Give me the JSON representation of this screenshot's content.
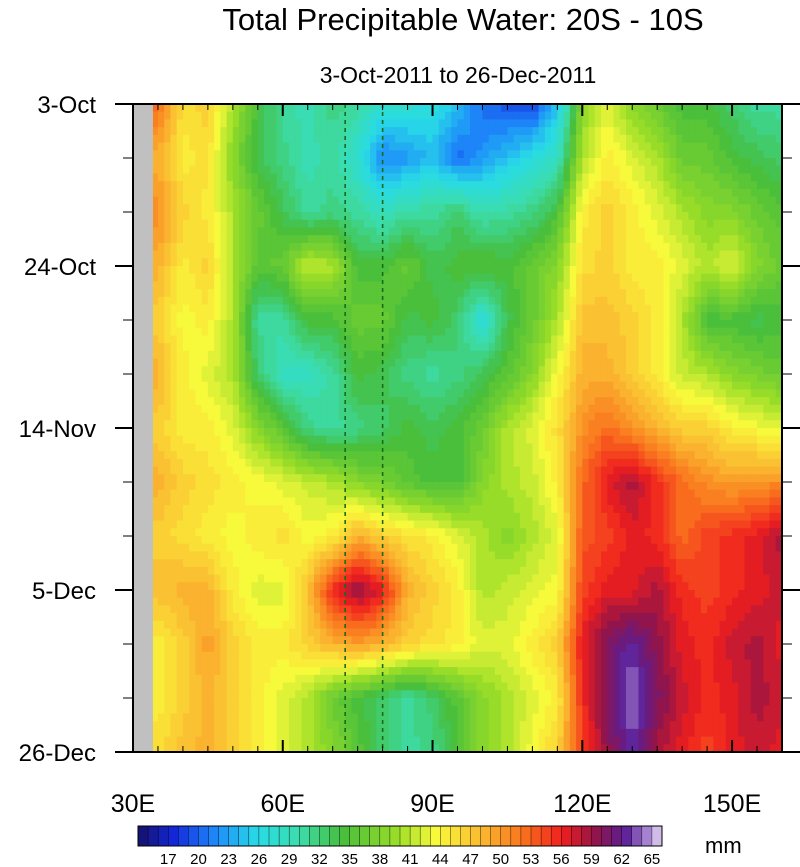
{
  "chart_data": {
    "type": "heatmap",
    "title": "Total Precipitable Water: 20S - 10S",
    "subtitle": "3-Oct-2011 to 26-Dec-2011",
    "x_ticks": [
      {
        "value": 30,
        "label": "30E"
      },
      {
        "value": 60,
        "label": "60E"
      },
      {
        "value": 90,
        "label": "90E"
      },
      {
        "value": 120,
        "label": "120E"
      },
      {
        "value": 150,
        "label": "150E"
      }
    ],
    "xlim": [
      30,
      160
    ],
    "y_ticks": [
      {
        "day": 0,
        "label": "3-Oct"
      },
      {
        "day": 21,
        "label": "24-Oct"
      },
      {
        "day": 42,
        "label": "14-Nov"
      },
      {
        "day": 63,
        "label": "5-Dec"
      },
      {
        "day": 84,
        "label": "26-Dec"
      }
    ],
    "ylim_days": [
      0,
      84
    ],
    "colorbar": {
      "unit": "mm",
      "tick_values": [
        17,
        20,
        23,
        26,
        29,
        32,
        35,
        38,
        41,
        44,
        47,
        50,
        53,
        56,
        59,
        62,
        65
      ],
      "levels_min": 14,
      "levels_max": 66,
      "levels_step": 1
    },
    "reference_lines_x": [
      72.5,
      80
    ],
    "land_mask": {
      "x_from": 30,
      "x_to": 34
    },
    "field_grid": {
      "x_cols": [
        35,
        40,
        45,
        50,
        55,
        60,
        65,
        70,
        75,
        80,
        85,
        90,
        95,
        100,
        105,
        110,
        115,
        120,
        125,
        130,
        135,
        140,
        145,
        150,
        155,
        160
      ],
      "day_rows": [
        0,
        7,
        14,
        21,
        28,
        35,
        42,
        49,
        56,
        63,
        70,
        77,
        84
      ],
      "values": [
        [
          52,
          45,
          46,
          40,
          34,
          30,
          29,
          31,
          30,
          27,
          27,
          26,
          24,
          20,
          19,
          18,
          24,
          38,
          42,
          38,
          36,
          34,
          34,
          32,
          30,
          30
        ],
        [
          48,
          44,
          45,
          38,
          33,
          31,
          29,
          30,
          27,
          21,
          22,
          24,
          20,
          22,
          24,
          26,
          28,
          40,
          44,
          42,
          40,
          36,
          36,
          34,
          33,
          32
        ],
        [
          50,
          46,
          44,
          40,
          36,
          33,
          30,
          31,
          30,
          28,
          30,
          30,
          32,
          29,
          30,
          31,
          34,
          44,
          46,
          44,
          42,
          40,
          38,
          38,
          36,
          35
        ],
        [
          48,
          44,
          46,
          40,
          35,
          36,
          41,
          40,
          34,
          34,
          36,
          33,
          34,
          35,
          34,
          36,
          38,
          45,
          46,
          44,
          44,
          42,
          40,
          42,
          38,
          36
        ],
        [
          46,
          43,
          44,
          40,
          30,
          30,
          34,
          34,
          36,
          36,
          33,
          34,
          32,
          26,
          33,
          36,
          40,
          47,
          47,
          46,
          44,
          40,
          34,
          34,
          33,
          34
        ],
        [
          48,
          44,
          42,
          40,
          32,
          28,
          28,
          30,
          34,
          33,
          31,
          30,
          31,
          33,
          35,
          38,
          43,
          48,
          48,
          46,
          44,
          41,
          40,
          38,
          37,
          36
        ],
        [
          46,
          44,
          44,
          42,
          38,
          35,
          31,
          30,
          31,
          32,
          34,
          33,
          34,
          36,
          40,
          42,
          45,
          50,
          52,
          50,
          48,
          46,
          46,
          44,
          43,
          42
        ],
        [
          48,
          46,
          45,
          44,
          43,
          42,
          41,
          40,
          38,
          37,
          35,
          34,
          34,
          38,
          40,
          41,
          44,
          52,
          56,
          58,
          55,
          52,
          50,
          49,
          50,
          50
        ],
        [
          46,
          45,
          44,
          43,
          44,
          45,
          43,
          44,
          48,
          46,
          45,
          44,
          42,
          40,
          38,
          40,
          42,
          53,
          54,
          56,
          55,
          52,
          54,
          55,
          56,
          58
        ],
        [
          47,
          48,
          48,
          44,
          42,
          42,
          47,
          55,
          59,
          56,
          48,
          46,
          44,
          40,
          41,
          42,
          43,
          54,
          56,
          56,
          58,
          55,
          54,
          55,
          56,
          57
        ],
        [
          44,
          46,
          49,
          46,
          44,
          44,
          46,
          48,
          49,
          48,
          46,
          45,
          44,
          42,
          42,
          44,
          46,
          56,
          60,
          62,
          59,
          56,
          55,
          57,
          58,
          56
        ],
        [
          44,
          46,
          48,
          46,
          44,
          42,
          40,
          36,
          34,
          32,
          30,
          32,
          35,
          38,
          40,
          42,
          44,
          55,
          60,
          64,
          60,
          57,
          55,
          56,
          58,
          57
        ],
        [
          45,
          47,
          48,
          46,
          44,
          42,
          40,
          38,
          35,
          32,
          30,
          31,
          34,
          38,
          40,
          43,
          46,
          54,
          59,
          62,
          58,
          56,
          54,
          56,
          57,
          56
        ]
      ]
    }
  }
}
